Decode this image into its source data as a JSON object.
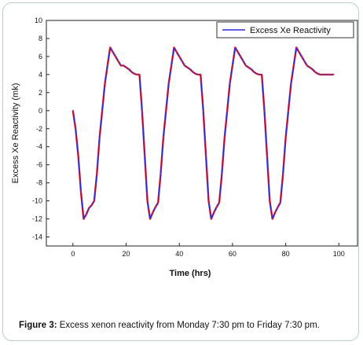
{
  "caption": {
    "label": "Figure 3:",
    "text": " Excess xenon reactivity from Monday 7:30 pm to Friday 7:30 pm."
  },
  "chart_data": {
    "type": "line",
    "title": "",
    "xlabel": "Time (hrs)",
    "ylabel": "Excess Xe Reactivity (mk)",
    "xlim": [
      -10,
      107
    ],
    "ylim": [
      -15,
      10
    ],
    "xticks": [
      0,
      20,
      40,
      60,
      80,
      100
    ],
    "yticks": [
      10,
      8,
      6,
      4,
      2,
      0,
      -2,
      -4,
      -6,
      -8,
      -10,
      -12,
      -14
    ],
    "grid": false,
    "legend_position": "top-right",
    "series": [
      {
        "name": "Excess Xe Reactivity",
        "line_color": "#2b2bd6",
        "marker_color": "#e0202a",
        "x": [
          0,
          1,
          2,
          3,
          4,
          5,
          6,
          7,
          8,
          9,
          10,
          11,
          12,
          13,
          14,
          15,
          16,
          17,
          18,
          19,
          20,
          21,
          22,
          23,
          24,
          25,
          26,
          27,
          28,
          29,
          30,
          31,
          32,
          33,
          34,
          35,
          36,
          37,
          38,
          39,
          40,
          41,
          42,
          43,
          44,
          45,
          46,
          47,
          48,
          49,
          50,
          51,
          52,
          53,
          54,
          55,
          56,
          57,
          58,
          59,
          60,
          61,
          62,
          63,
          64,
          65,
          66,
          67,
          68,
          69,
          70,
          71,
          72,
          73,
          74,
          75,
          76,
          77,
          78,
          79,
          80,
          81,
          82,
          83,
          84,
          85,
          86,
          87,
          88,
          89,
          90,
          91,
          92,
          93,
          94,
          95,
          96,
          97,
          98
        ],
        "y": [
          0,
          -2,
          -5,
          -9,
          -12,
          -11.5,
          -10.8,
          -10.5,
          -10,
          -7,
          -3,
          0,
          3,
          5,
          7,
          6.5,
          6,
          5.5,
          5,
          5,
          4.8,
          4.6,
          4.3,
          4.1,
          4,
          4,
          0,
          -5,
          -10,
          -12,
          -11.3,
          -10.7,
          -10.2,
          -7,
          -3,
          0,
          3,
          5,
          7,
          6.5,
          6,
          5.5,
          5,
          4.8,
          4.6,
          4.3,
          4.1,
          4,
          4,
          0,
          -5,
          -10,
          -12,
          -11.3,
          -10.7,
          -10.2,
          -7,
          -3,
          0,
          3,
          5,
          7,
          6.5,
          6,
          5.5,
          5,
          4.8,
          4.6,
          4.3,
          4.1,
          4,
          4,
          0,
          -5,
          -10,
          -12,
          -11.3,
          -10.7,
          -10.2,
          -7,
          -3,
          0,
          3,
          5,
          7,
          6.5,
          6,
          5.5,
          5,
          4.8,
          4.6,
          4.3,
          4.1,
          4,
          4,
          4,
          4,
          4,
          4
        ]
      }
    ]
  }
}
